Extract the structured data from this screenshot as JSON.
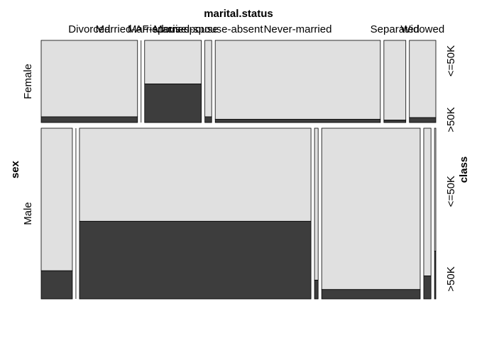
{
  "chart_data": {
    "type": "mosaic",
    "title": "",
    "x_variable": "marital.status",
    "y_variable": "sex",
    "fill_variable": "class",
    "marital_status_levels": [
      "Divorced",
      "Married-AF-spouse",
      "Married-civ-spouse",
      "Married-spouse-absent",
      "Never-married",
      "Separated",
      "Widowed"
    ],
    "sex_levels": [
      "Female",
      "Male"
    ],
    "class_levels": [
      "<=50K",
      ">50K"
    ],
    "colors": {
      "<=50K": "#e0e0e0",
      ">50K": "#3d3d3d",
      "stroke": "#000000"
    },
    "female": {
      "marital_status_share": [
        0.255,
        0.0,
        0.15,
        0.018,
        0.437,
        0.058,
        0.07
      ],
      "share_above_50k": [
        0.07,
        0.0,
        0.47,
        0.07,
        0.04,
        0.03,
        0.06
      ]
    },
    "male": {
      "marital_status_share": [
        0.095,
        0.0,
        0.705,
        0.011,
        0.3,
        0.022,
        0.004
      ],
      "share_above_50k": [
        0.165,
        0.5,
        0.455,
        0.11,
        0.055,
        0.135,
        0.28
      ]
    },
    "sex_share": {
      "Female": 0.325,
      "Male": 0.675
    }
  }
}
